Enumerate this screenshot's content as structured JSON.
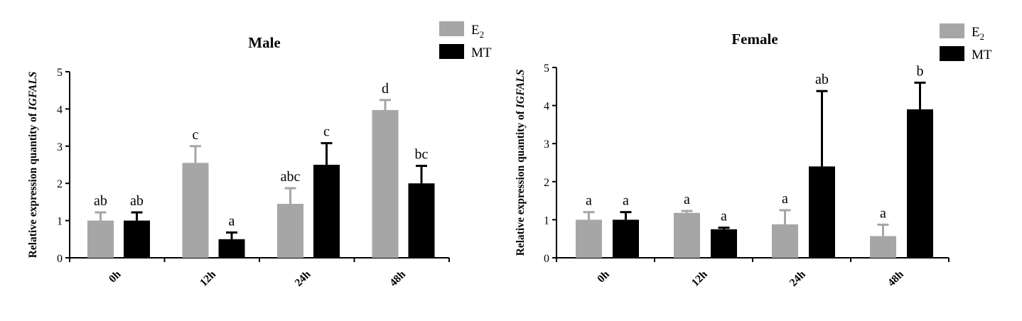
{
  "chart_data": [
    {
      "type": "bar",
      "title": "Male",
      "ylabel_prefix": "Relative expression quantity of ",
      "ylabel_gene": "IGFALS",
      "xlabel": "",
      "categories": [
        "0h",
        "12h",
        "24h",
        "48h"
      ],
      "ylim": [
        0,
        5
      ],
      "yticks": [
        "0",
        "1",
        "2",
        "3",
        "4",
        "5"
      ],
      "legend_position": "top-right",
      "series": [
        {
          "name_main": "E",
          "name_sub": "2",
          "color": "#a6a6a6",
          "values": [
            1.0,
            2.55,
            1.45,
            3.97
          ],
          "errors": [
            0.22,
            0.45,
            0.42,
            0.27
          ],
          "labels": [
            "ab",
            "c",
            "abc",
            "d"
          ]
        },
        {
          "name_main": "MT",
          "name_sub": "",
          "color": "#000000",
          "values": [
            1.0,
            0.5,
            2.5,
            2.0
          ],
          "errors": [
            0.22,
            0.18,
            0.58,
            0.47
          ],
          "labels": [
            "ab",
            "a",
            "c",
            "bc"
          ]
        }
      ]
    },
    {
      "type": "bar",
      "title": "Female",
      "ylabel_prefix": "Relative expression quantity of ",
      "ylabel_gene": "IGFALS",
      "xlabel": "",
      "categories": [
        "0h",
        "12h",
        "24h",
        "48h"
      ],
      "ylim": [
        0,
        5
      ],
      "yticks": [
        "0",
        "1",
        "2",
        "3",
        "4",
        "5"
      ],
      "legend_position": "top-right",
      "series": [
        {
          "name_main": "E",
          "name_sub": "2",
          "color": "#a6a6a6",
          "values": [
            1.0,
            1.18,
            0.88,
            0.57
          ],
          "errors": [
            0.2,
            0.05,
            0.37,
            0.3
          ],
          "labels": [
            "a",
            "a",
            "a",
            "a"
          ]
        },
        {
          "name_main": "MT",
          "name_sub": "",
          "color": "#000000",
          "values": [
            1.0,
            0.75,
            2.4,
            3.9
          ],
          "errors": [
            0.2,
            0.04,
            1.98,
            0.7
          ],
          "labels": [
            "a",
            "a",
            "ab",
            "b"
          ]
        }
      ]
    }
  ]
}
